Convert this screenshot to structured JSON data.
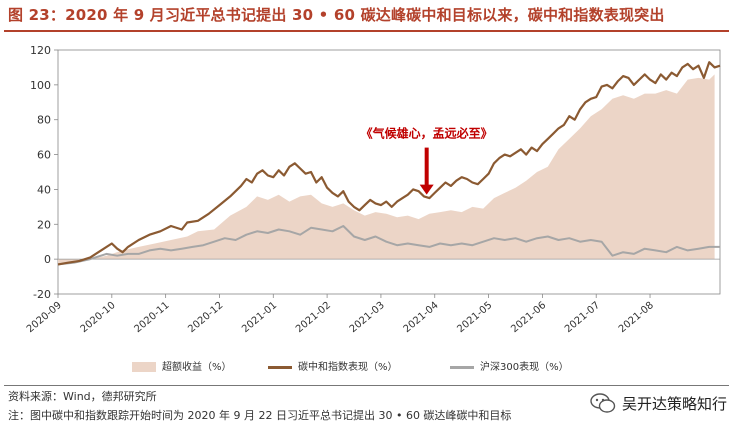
{
  "header": {
    "title": "图 23：2020 年 9 月习近平总书记提出 30 • 60 碳达峰碳中和目标以来，碳中和指数表现突出"
  },
  "colors": {
    "title": "#b3412b",
    "area": "#ecd5c7",
    "index_line": "#8b5a32",
    "hs300_line": "#a6a6a6",
    "annotation": "#c00000"
  },
  "chart_data": {
    "type": "line",
    "title": "",
    "xlabel": "",
    "ylabel": "",
    "ylim": [
      -20,
      120
    ],
    "yticks": [
      -20,
      0,
      20,
      40,
      60,
      80,
      100,
      120
    ],
    "x_range": [
      0,
      12.3
    ],
    "xticks": [
      {
        "label": "2020-09",
        "x": 0
      },
      {
        "label": "2020-10",
        "x": 1
      },
      {
        "label": "2020-11",
        "x": 2
      },
      {
        "label": "2020-12",
        "x": 3
      },
      {
        "label": "2021-01",
        "x": 4
      },
      {
        "label": "2021-02",
        "x": 5
      },
      {
        "label": "2021-03",
        "x": 6
      },
      {
        "label": "2021-04",
        "x": 7
      },
      {
        "label": "2021-05",
        "x": 8
      },
      {
        "label": "2021-06",
        "x": 9
      },
      {
        "label": "2021-07",
        "x": 10
      },
      {
        "label": "2021-08",
        "x": 11
      }
    ],
    "series": [
      {
        "name": "超额收益（%）",
        "kind": "area",
        "points": [
          [
            0,
            -3
          ],
          [
            0.3,
            -2
          ],
          [
            0.6,
            0
          ],
          [
            0.9,
            2
          ],
          [
            1.2,
            5
          ],
          [
            1.5,
            7
          ],
          [
            1.8,
            9
          ],
          [
            2.1,
            11
          ],
          [
            2.4,
            13
          ],
          [
            2.6,
            16
          ],
          [
            2.9,
            17
          ],
          [
            3.2,
            25
          ],
          [
            3.5,
            30
          ],
          [
            3.7,
            36
          ],
          [
            3.9,
            34
          ],
          [
            4.1,
            37
          ],
          [
            4.3,
            33
          ],
          [
            4.5,
            36
          ],
          [
            4.7,
            37
          ],
          [
            4.9,
            32
          ],
          [
            5.1,
            30
          ],
          [
            5.3,
            32
          ],
          [
            5.5,
            28
          ],
          [
            5.7,
            25
          ],
          [
            5.9,
            27
          ],
          [
            6.1,
            26
          ],
          [
            6.3,
            24
          ],
          [
            6.5,
            25
          ],
          [
            6.7,
            23
          ],
          [
            6.9,
            26
          ],
          [
            7.1,
            27
          ],
          [
            7.3,
            28
          ],
          [
            7.5,
            27
          ],
          [
            7.7,
            30
          ],
          [
            7.9,
            29
          ],
          [
            8.1,
            35
          ],
          [
            8.3,
            38
          ],
          [
            8.5,
            41
          ],
          [
            8.7,
            45
          ],
          [
            8.9,
            50
          ],
          [
            9.1,
            53
          ],
          [
            9.3,
            63
          ],
          [
            9.5,
            69
          ],
          [
            9.7,
            75
          ],
          [
            9.9,
            82
          ],
          [
            10.1,
            86
          ],
          [
            10.3,
            92
          ],
          [
            10.5,
            94
          ],
          [
            10.7,
            92
          ],
          [
            10.9,
            95
          ],
          [
            11.1,
            95
          ],
          [
            11.3,
            97
          ],
          [
            11.5,
            95
          ],
          [
            11.7,
            103
          ],
          [
            11.9,
            104
          ],
          [
            12.1,
            103
          ],
          [
            12.2,
            106
          ]
        ]
      },
      {
        "name": "碳中和指数表现（%）",
        "kind": "line",
        "points": [
          [
            0,
            -3
          ],
          [
            0.2,
            -2
          ],
          [
            0.4,
            -1
          ],
          [
            0.6,
            1
          ],
          [
            0.8,
            5
          ],
          [
            1.0,
            9
          ],
          [
            1.1,
            6
          ],
          [
            1.2,
            4
          ],
          [
            1.3,
            7
          ],
          [
            1.5,
            11
          ],
          [
            1.7,
            14
          ],
          [
            1.9,
            16
          ],
          [
            2.1,
            19
          ],
          [
            2.3,
            17
          ],
          [
            2.4,
            21
          ],
          [
            2.6,
            22
          ],
          [
            2.8,
            26
          ],
          [
            3.0,
            31
          ],
          [
            3.2,
            36
          ],
          [
            3.4,
            42
          ],
          [
            3.5,
            46
          ],
          [
            3.6,
            44
          ],
          [
            3.7,
            49
          ],
          [
            3.8,
            51
          ],
          [
            3.9,
            48
          ],
          [
            4.0,
            47
          ],
          [
            4.1,
            51
          ],
          [
            4.2,
            48
          ],
          [
            4.3,
            53
          ],
          [
            4.4,
            55
          ],
          [
            4.5,
            52
          ],
          [
            4.6,
            49
          ],
          [
            4.7,
            50
          ],
          [
            4.8,
            44
          ],
          [
            4.9,
            47
          ],
          [
            5.0,
            41
          ],
          [
            5.1,
            38
          ],
          [
            5.2,
            36
          ],
          [
            5.3,
            39
          ],
          [
            5.4,
            33
          ],
          [
            5.5,
            30
          ],
          [
            5.6,
            28
          ],
          [
            5.7,
            31
          ],
          [
            5.8,
            34
          ],
          [
            5.9,
            32
          ],
          [
            6.0,
            31
          ],
          [
            6.1,
            33
          ],
          [
            6.2,
            30
          ],
          [
            6.3,
            33
          ],
          [
            6.4,
            35
          ],
          [
            6.5,
            37
          ],
          [
            6.6,
            40
          ],
          [
            6.7,
            39
          ],
          [
            6.8,
            36
          ],
          [
            6.9,
            35
          ],
          [
            7.0,
            38
          ],
          [
            7.1,
            41
          ],
          [
            7.2,
            44
          ],
          [
            7.3,
            42
          ],
          [
            7.4,
            45
          ],
          [
            7.5,
            47
          ],
          [
            7.6,
            46
          ],
          [
            7.7,
            44
          ],
          [
            7.8,
            43
          ],
          [
            7.9,
            46
          ],
          [
            8.0,
            49
          ],
          [
            8.1,
            55
          ],
          [
            8.2,
            58
          ],
          [
            8.3,
            60
          ],
          [
            8.4,
            59
          ],
          [
            8.5,
            61
          ],
          [
            8.6,
            63
          ],
          [
            8.7,
            60
          ],
          [
            8.8,
            64
          ],
          [
            8.9,
            62
          ],
          [
            9.0,
            66
          ],
          [
            9.1,
            69
          ],
          [
            9.2,
            72
          ],
          [
            9.3,
            75
          ],
          [
            9.4,
            77
          ],
          [
            9.5,
            82
          ],
          [
            9.6,
            80
          ],
          [
            9.7,
            86
          ],
          [
            9.8,
            90
          ],
          [
            9.9,
            92
          ],
          [
            10.0,
            93
          ],
          [
            10.1,
            99
          ],
          [
            10.2,
            100
          ],
          [
            10.3,
            98
          ],
          [
            10.4,
            102
          ],
          [
            10.5,
            105
          ],
          [
            10.6,
            104
          ],
          [
            10.7,
            100
          ],
          [
            10.8,
            103
          ],
          [
            10.9,
            106
          ],
          [
            11.0,
            103
          ],
          [
            11.1,
            101
          ],
          [
            11.2,
            106
          ],
          [
            11.3,
            103
          ],
          [
            11.4,
            107
          ],
          [
            11.5,
            105
          ],
          [
            11.6,
            110
          ],
          [
            11.7,
            112
          ],
          [
            11.8,
            109
          ],
          [
            11.9,
            111
          ],
          [
            12.0,
            104
          ],
          [
            12.1,
            113
          ],
          [
            12.2,
            110
          ],
          [
            12.3,
            111
          ]
        ]
      },
      {
        "name": "沪深300表现（%）",
        "kind": "line",
        "points": [
          [
            0,
            -3
          ],
          [
            0.3,
            -2
          ],
          [
            0.6,
            0
          ],
          [
            0.9,
            3
          ],
          [
            1.1,
            2
          ],
          [
            1.3,
            3
          ],
          [
            1.5,
            3
          ],
          [
            1.7,
            5
          ],
          [
            1.9,
            6
          ],
          [
            2.1,
            5
          ],
          [
            2.3,
            6
          ],
          [
            2.5,
            7
          ],
          [
            2.7,
            8
          ],
          [
            2.9,
            10
          ],
          [
            3.1,
            12
          ],
          [
            3.3,
            11
          ],
          [
            3.5,
            14
          ],
          [
            3.7,
            16
          ],
          [
            3.9,
            15
          ],
          [
            4.1,
            17
          ],
          [
            4.3,
            16
          ],
          [
            4.5,
            14
          ],
          [
            4.7,
            18
          ],
          [
            4.9,
            17
          ],
          [
            5.1,
            16
          ],
          [
            5.3,
            19
          ],
          [
            5.5,
            13
          ],
          [
            5.7,
            11
          ],
          [
            5.9,
            13
          ],
          [
            6.1,
            10
          ],
          [
            6.3,
            8
          ],
          [
            6.5,
            9
          ],
          [
            6.7,
            8
          ],
          [
            6.9,
            7
          ],
          [
            7.1,
            9
          ],
          [
            7.3,
            8
          ],
          [
            7.5,
            9
          ],
          [
            7.7,
            8
          ],
          [
            7.9,
            10
          ],
          [
            8.1,
            12
          ],
          [
            8.3,
            11
          ],
          [
            8.5,
            12
          ],
          [
            8.7,
            10
          ],
          [
            8.9,
            12
          ],
          [
            9.1,
            13
          ],
          [
            9.3,
            11
          ],
          [
            9.5,
            12
          ],
          [
            9.7,
            10
          ],
          [
            9.9,
            11
          ],
          [
            10.1,
            10
          ],
          [
            10.3,
            2
          ],
          [
            10.5,
            4
          ],
          [
            10.7,
            3
          ],
          [
            10.9,
            6
          ],
          [
            11.1,
            5
          ],
          [
            11.3,
            4
          ],
          [
            11.5,
            7
          ],
          [
            11.7,
            5
          ],
          [
            11.9,
            6
          ],
          [
            12.1,
            7
          ],
          [
            12.3,
            7
          ]
        ]
      }
    ],
    "annotation": {
      "text": "《气候雄心，孟远必至》",
      "x": 6.85,
      "y_from": 64,
      "y_to": 37
    },
    "legend_position": "bottom"
  },
  "footer": {
    "source": "资料来源：Wind，德邦研究所",
    "note": "注：图中碳中和指数跟踪开始时间为 2020 年 9 月 22 日习近平总书记提出 30 • 60 碳达峰碳中和目标",
    "watermark": "吴开达策略知行"
  }
}
